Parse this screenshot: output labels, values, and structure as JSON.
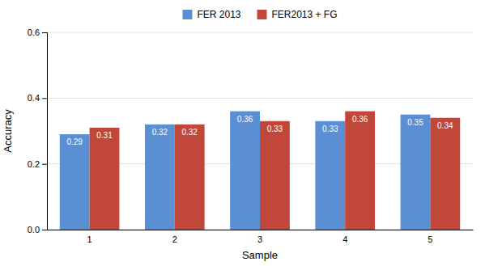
{
  "chart_data": {
    "type": "bar",
    "categories": [
      "1",
      "2",
      "3",
      "4",
      "5"
    ],
    "series": [
      {
        "name": "FER 2013",
        "color": "#5b8fd4",
        "values": [
          0.29,
          0.32,
          0.36,
          0.33,
          0.35
        ]
      },
      {
        "name": "FER2013 + FG",
        "color": "#c0473a",
        "values": [
          0.31,
          0.32,
          0.33,
          0.36,
          0.34
        ]
      }
    ],
    "xlabel": "Sample",
    "ylabel": "Accuracy",
    "ylim": [
      0,
      0.6
    ],
    "yticks": [
      {
        "value": 0.0,
        "label": "0.0"
      },
      0.2,
      0.4,
      0.6
    ],
    "grid": true,
    "legend": "top",
    "data_labels": true
  }
}
